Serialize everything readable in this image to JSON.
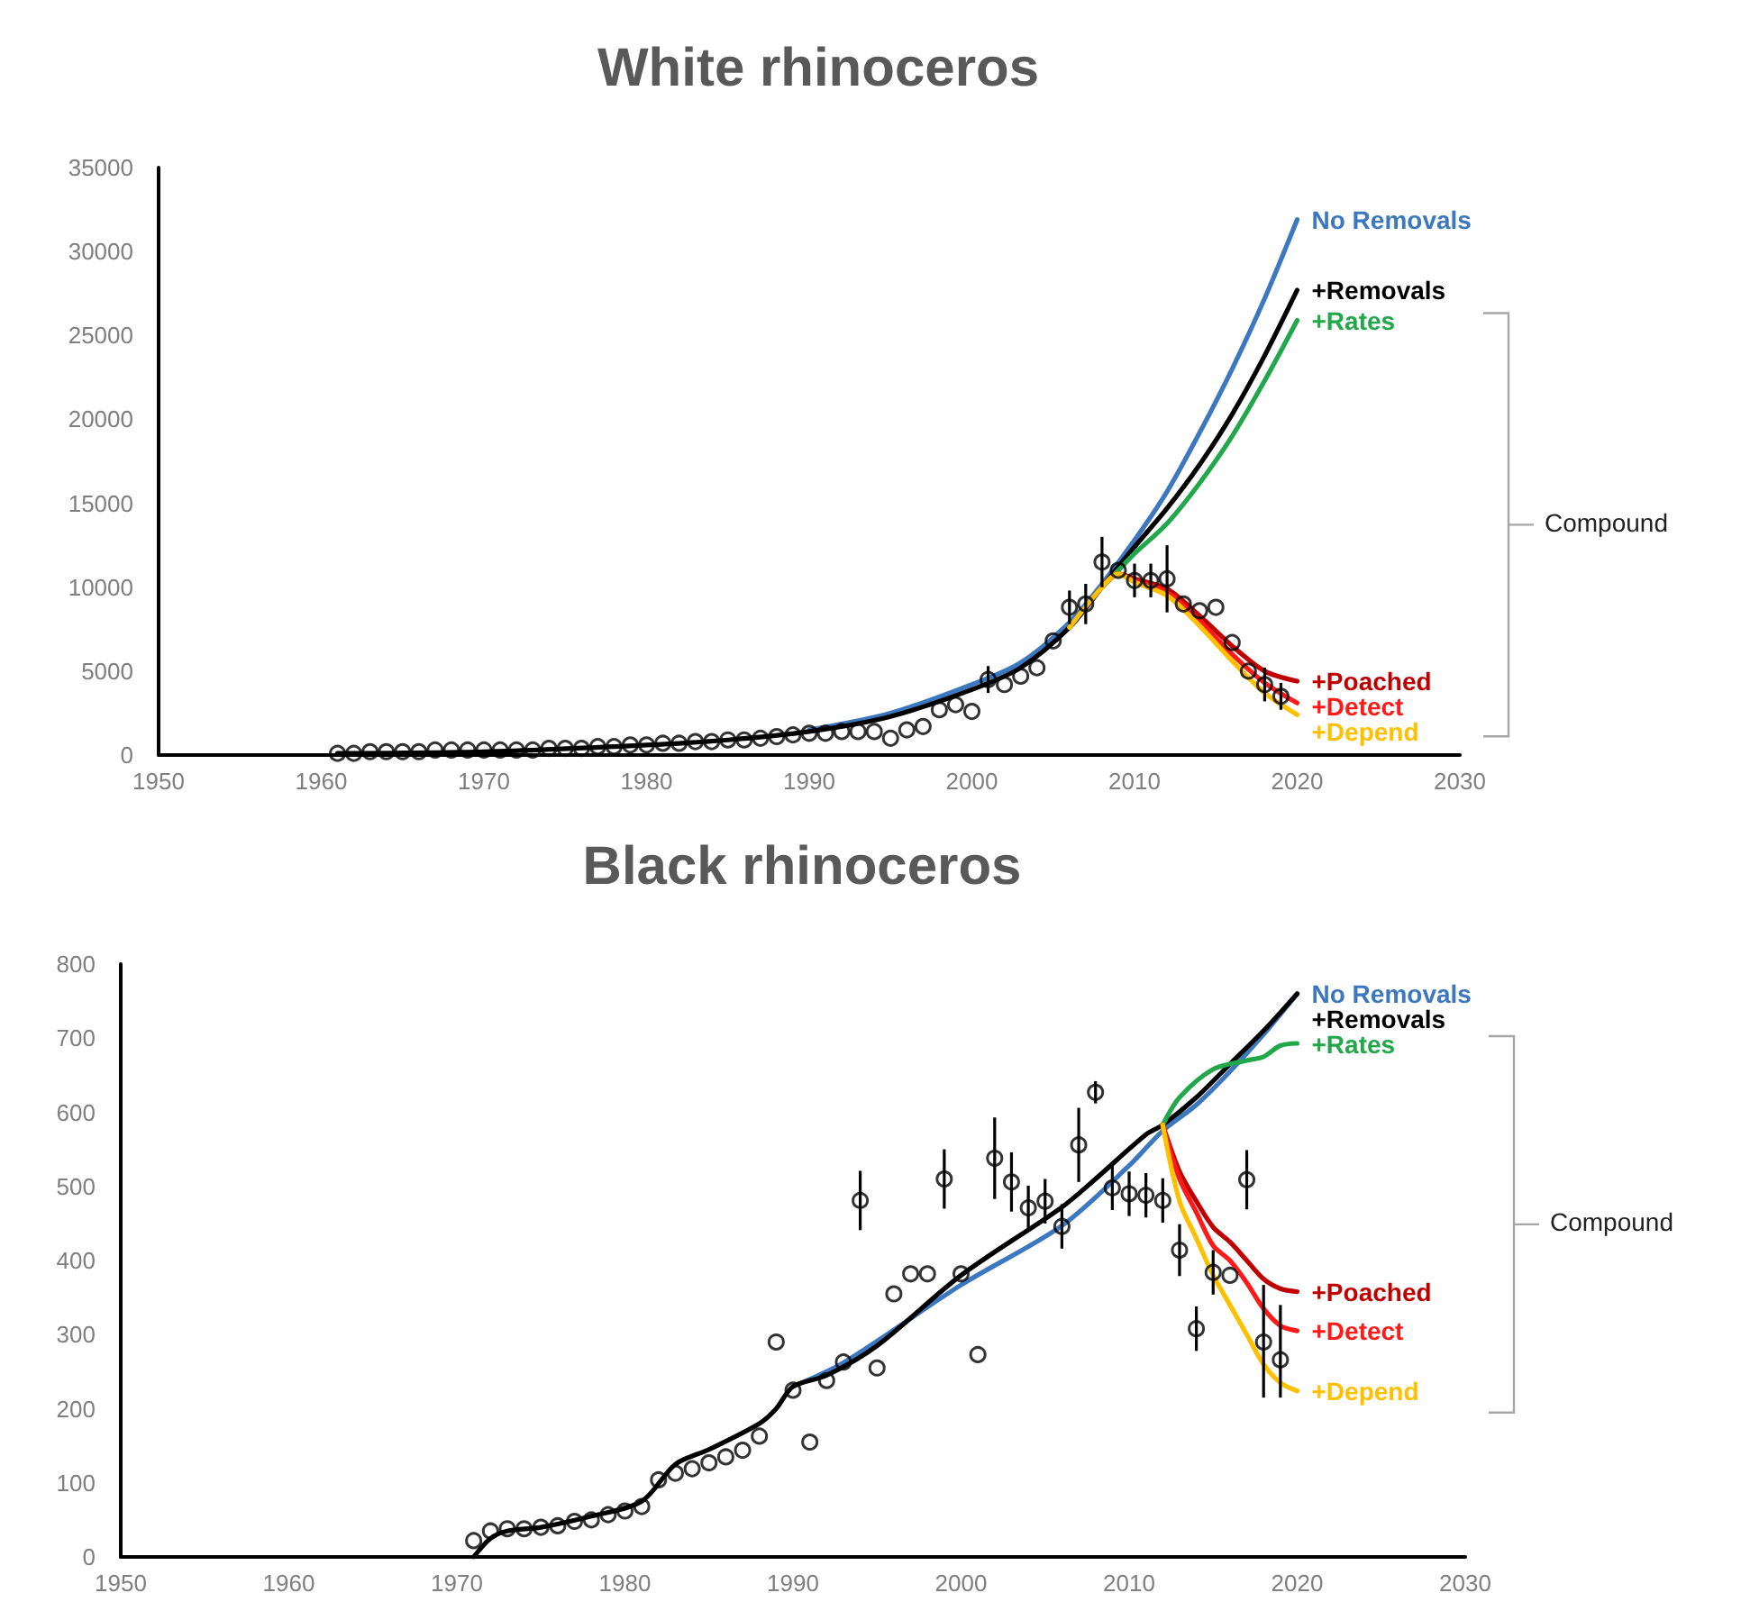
{
  "chart_data": [
    {
      "type": "line",
      "title": "White rhinoceros",
      "xlim": [
        1950,
        2030
      ],
      "xticks": [
        1950,
        1960,
        1970,
        1980,
        1990,
        2000,
        2010,
        2020,
        2030
      ],
      "ylim": [
        0,
        35000
      ],
      "yticks": [
        0,
        5000,
        10000,
        15000,
        20000,
        25000,
        30000,
        35000
      ],
      "annotations": [
        "Compound"
      ],
      "series": [
        {
          "type": "scatter",
          "marker": "circle",
          "color": "#000000",
          "x": [
            1961,
            1962,
            1963,
            1964,
            1965,
            1966,
            1967,
            1968,
            1969,
            1970,
            1971,
            1972,
            1973,
            1974,
            1975,
            1976,
            1977,
            1978,
            1979,
            1980,
            1981,
            1982,
            1983,
            1984,
            1985,
            1986,
            1987,
            1988,
            1989,
            1990,
            1991,
            1992,
            1993,
            1994,
            1995,
            1996,
            1997,
            1998,
            1999,
            2000,
            2001,
            2002,
            2003,
            2004,
            2005,
            2006,
            2007,
            2008,
            2009,
            2010,
            2011,
            2012,
            2013,
            2014,
            2015,
            2016,
            2017,
            2018,
            2019
          ],
          "values": [
            100,
            100,
            200,
            200,
            200,
            200,
            300,
            300,
            300,
            300,
            300,
            300,
            300,
            400,
            400,
            400,
            500,
            500,
            600,
            600,
            700,
            700,
            800,
            800,
            900,
            900,
            1000,
            1100,
            1200,
            1300,
            1300,
            1400,
            1400,
            1400,
            1000,
            1500,
            1700,
            2700,
            3000,
            2600,
            4500,
            4200,
            4700,
            5200,
            6800,
            8800,
            9000,
            11500,
            11000,
            10400,
            10400,
            10500,
            9000,
            8600,
            8800,
            6700,
            5000,
            4200,
            3500
          ],
          "errors": [
            null,
            null,
            null,
            null,
            null,
            null,
            null,
            null,
            null,
            null,
            null,
            null,
            null,
            null,
            null,
            null,
            null,
            null,
            null,
            null,
            null,
            null,
            null,
            null,
            null,
            null,
            null,
            null,
            null,
            null,
            null,
            null,
            null,
            null,
            null,
            null,
            null,
            null,
            null,
            null,
            800,
            null,
            null,
            null,
            null,
            1000,
            1200,
            1500,
            null,
            1000,
            1000,
            2000,
            null,
            null,
            null,
            null,
            null,
            1000,
            800
          ]
        },
        {
          "name": "No Removals",
          "color": "#3c78c0",
          "x": [
            1990,
            1995,
            2000,
            2003,
            2006,
            2008,
            2010,
            2012,
            2014,
            2016,
            2018,
            2020
          ],
          "values": [
            1500,
            2500,
            4200,
            5500,
            7900,
            10200,
            12800,
            15700,
            19200,
            23000,
            27200,
            31900
          ]
        },
        {
          "name": "+Removals",
          "color": "#000000",
          "x": [
            1961,
            1970,
            1980,
            1985,
            1990,
            1995,
            2000,
            2003,
            2006,
            2008,
            2010,
            2012,
            2014,
            2016,
            2018,
            2020
          ],
          "values": [
            100,
            200,
            600,
            900,
            1400,
            2300,
            3900,
            5200,
            7600,
            10000,
            12400,
            14700,
            17300,
            20300,
            23800,
            27700
          ]
        },
        {
          "name": "+Rates",
          "color": "#22a84a",
          "x": [
            2008,
            2009,
            2010,
            2012,
            2014,
            2016,
            2018,
            2020
          ],
          "values": [
            10000,
            11000,
            12000,
            13800,
            16200,
            19000,
            22300,
            25900
          ]
        },
        {
          "name": "+Poached",
          "color": "#c00000",
          "x": [
            2008,
            2009,
            2010,
            2012,
            2014,
            2016,
            2018,
            2020
          ],
          "values": [
            10000,
            10800,
            10500,
            9900,
            8300,
            6500,
            5000,
            4400
          ]
        },
        {
          "name": "+Detect",
          "color": "#ff1a1a",
          "x": [
            2008,
            2009,
            2010,
            2012,
            2014,
            2016,
            2018,
            2020
          ],
          "values": [
            10000,
            10800,
            10400,
            9700,
            8000,
            6000,
            4300,
            3100
          ]
        },
        {
          "name": "+Depend",
          "color": "#ffc000",
          "x": [
            2006,
            2008,
            2009,
            2010,
            2012,
            2014,
            2016,
            2018,
            2020
          ],
          "values": [
            7600,
            10000,
            10800,
            10300,
            9500,
            7700,
            5600,
            3700,
            2400
          ]
        }
      ]
    },
    {
      "type": "line",
      "title": "Black rhinoceros",
      "xlim": [
        1950,
        2030
      ],
      "xticks": [
        1950,
        1960,
        1970,
        1980,
        1990,
        2000,
        2010,
        2020,
        2030
      ],
      "ylim": [
        0,
        800
      ],
      "yticks": [
        0,
        100,
        200,
        300,
        400,
        500,
        600,
        700,
        800
      ],
      "annotations": [
        "Compound"
      ],
      "series": [
        {
          "type": "scatter",
          "marker": "circle",
          "color": "#000000",
          "x": [
            1971,
            1972,
            1973,
            1974,
            1975,
            1976,
            1977,
            1978,
            1979,
            1980,
            1981,
            1982,
            1983,
            1984,
            1985,
            1986,
            1987,
            1988,
            1989,
            1990,
            1991,
            1992,
            1993,
            1994,
            1995,
            1996,
            1997,
            1998,
            1999,
            2000,
            2001,
            2002,
            2003,
            2004,
            2005,
            2006,
            2007,
            2008,
            2009,
            2010,
            2011,
            2012,
            2013,
            2014,
            2015,
            2016,
            2017,
            2018,
            2019
          ],
          "values": [
            22,
            35,
            38,
            38,
            40,
            42,
            48,
            50,
            57,
            62,
            68,
            104,
            113,
            119,
            127,
            135,
            144,
            163,
            290,
            225,
            155,
            238,
            263,
            481,
            255,
            355,
            382,
            382,
            510,
            382,
            273,
            538,
            506,
            471,
            480,
            446,
            556,
            627,
            498,
            490,
            488,
            481,
            414,
            308,
            384,
            380,
            509,
            290,
            266
          ],
          "errors": [
            null,
            null,
            null,
            null,
            null,
            null,
            null,
            null,
            null,
            null,
            null,
            null,
            null,
            null,
            null,
            null,
            null,
            null,
            null,
            null,
            null,
            null,
            null,
            40,
            null,
            null,
            null,
            null,
            40,
            null,
            null,
            55,
            40,
            30,
            30,
            30,
            50,
            15,
            30,
            30,
            30,
            30,
            35,
            30,
            30,
            null,
            40,
            [
              215,
              367
            ],
            [
              215,
              340
            ]
          ]
        },
        {
          "name": "No Removals",
          "color": "#3c78c0",
          "x": [
            1990,
            1993,
            2000,
            2006,
            2010,
            2012,
            2014,
            2016,
            2018,
            2020
          ],
          "values": [
            230,
            262,
            367,
            447,
            528,
            575,
            610,
            655,
            705,
            760
          ]
        },
        {
          "name": "+Removals",
          "color": "#000000",
          "x": [
            1971,
            1972,
            1973,
            1975,
            1978,
            1981,
            1983,
            1985,
            1988,
            1989,
            1990,
            1992,
            1995,
            2000,
            2006,
            2008,
            2011,
            2012,
            2014,
            2016,
            2018,
            2020
          ],
          "values": [
            0,
            25,
            35,
            40,
            55,
            75,
            125,
            145,
            180,
            200,
            230,
            245,
            285,
            380,
            472,
            510,
            570,
            583,
            620,
            665,
            710,
            760
          ]
        },
        {
          "name": "+Rates",
          "color": "#22a84a",
          "x": [
            2012,
            2013,
            2015,
            2017,
            2018,
            2019,
            2020
          ],
          "values": [
            583,
            620,
            658,
            670,
            675,
            690,
            693
          ]
        },
        {
          "name": "+Poached",
          "color": "#c00000",
          "x": [
            2012,
            2013,
            2014,
            2015,
            2016,
            2017,
            2018,
            2019,
            2020
          ],
          "values": [
            583,
            520,
            480,
            445,
            425,
            400,
            375,
            362,
            358
          ]
        },
        {
          "name": "+Detect",
          "color": "#ff1a1a",
          "x": [
            2012,
            2013,
            2014,
            2015,
            2016,
            2017,
            2018,
            2019,
            2020
          ],
          "values": [
            583,
            510,
            465,
            420,
            400,
            370,
            335,
            312,
            305
          ]
        },
        {
          "name": "+Depend",
          "color": "#ffc000",
          "x": [
            2012,
            2013,
            2014,
            2015,
            2016,
            2017,
            2018,
            2019,
            2020
          ],
          "values": [
            583,
            480,
            430,
            380,
            340,
            300,
            260,
            235,
            224
          ]
        }
      ]
    }
  ]
}
